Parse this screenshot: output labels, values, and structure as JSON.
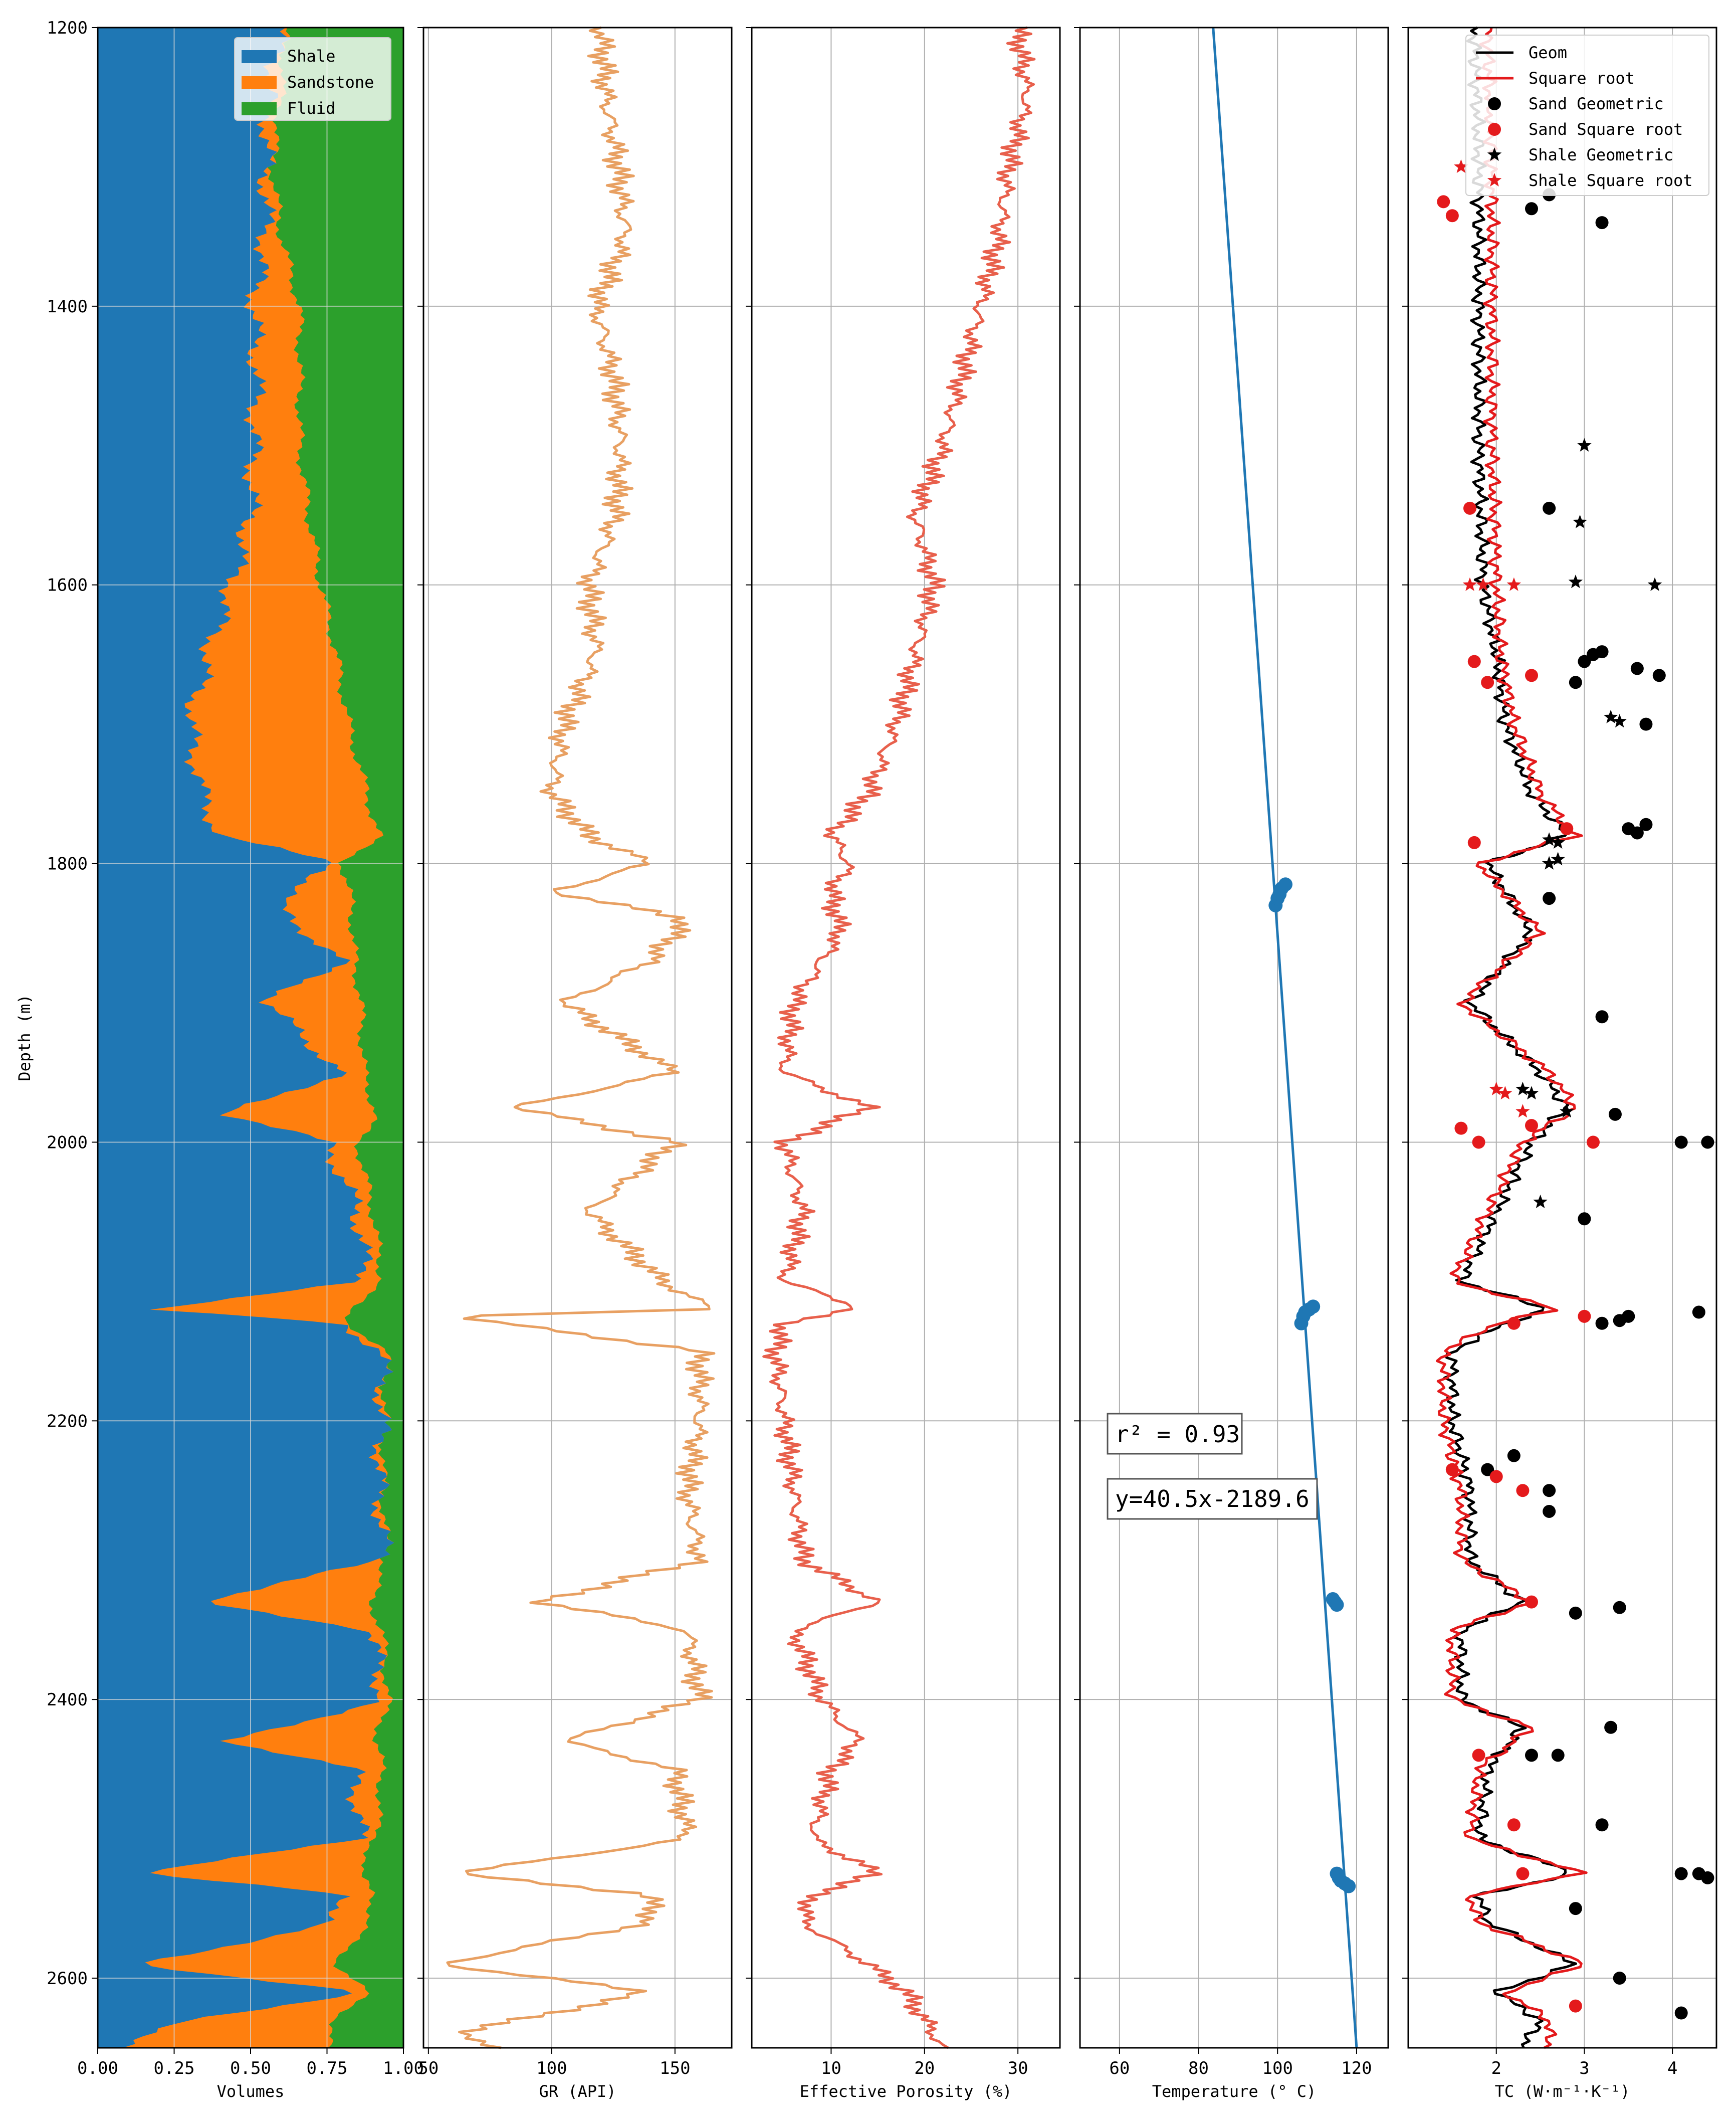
{
  "chart_data": [
    {
      "type": "area",
      "id": "volumes",
      "xlabel": "Volumes",
      "ylabel": "Depth (m)",
      "xlim": [
        0,
        1
      ],
      "ylim": [
        2650,
        1200
      ],
      "xticks": [
        0,
        0.25,
        0.5,
        0.75,
        1.0
      ],
      "xtick_labels": [
        "0.00",
        "0.25",
        "0.50",
        "0.75",
        "1.00"
      ],
      "yticks": [
        1200,
        1400,
        1600,
        1800,
        2000,
        2200,
        2400,
        2600
      ],
      "ytick_labels": [
        "1200",
        "1400",
        "1600",
        "1800",
        "2000",
        "2200",
        "2400",
        "2600"
      ],
      "grid": true,
      "legend_position": "top-right",
      "series": [
        {
          "name": "Shale",
          "color": "#1f77b4"
        },
        {
          "name": "Sandstone",
          "color": "#ff7f0e"
        },
        {
          "name": "Fluid",
          "color": "#2ca02c"
        }
      ],
      "depth": [
        1200,
        1250,
        1300,
        1350,
        1400,
        1450,
        1500,
        1550,
        1600,
        1650,
        1700,
        1750,
        1780,
        1800,
        1830,
        1870,
        1900,
        1950,
        1980,
        2000,
        2050,
        2100,
        2120,
        2130,
        2150,
        2200,
        2250,
        2300,
        2330,
        2350,
        2400,
        2430,
        2450,
        2500,
        2525,
        2540,
        2560,
        2590,
        2610,
        2630,
        2650
      ],
      "shale_top": [
        0.6,
        0.56,
        0.55,
        0.55,
        0.51,
        0.52,
        0.51,
        0.5,
        0.44,
        0.36,
        0.3,
        0.34,
        0.4,
        0.78,
        0.58,
        0.8,
        0.55,
        0.8,
        0.42,
        0.75,
        0.85,
        0.88,
        0.15,
        0.8,
        0.93,
        0.93,
        0.92,
        0.94,
        0.32,
        0.9,
        0.93,
        0.43,
        0.84,
        0.86,
        0.14,
        0.8,
        0.78,
        0.13,
        0.86,
        0.3,
        0.08
      ],
      "sand_top": [
        0.61,
        0.6,
        0.57,
        0.6,
        0.66,
        0.66,
        0.66,
        0.69,
        0.73,
        0.78,
        0.82,
        0.88,
        0.92,
        0.8,
        0.83,
        0.84,
        0.86,
        0.87,
        0.91,
        0.85,
        0.9,
        0.93,
        0.82,
        0.82,
        0.94,
        0.93,
        0.93,
        0.94,
        0.89,
        0.93,
        0.95,
        0.91,
        0.93,
        0.91,
        0.85,
        0.91,
        0.88,
        0.78,
        0.88,
        0.78,
        0.75
      ]
    },
    {
      "type": "line",
      "id": "gr",
      "xlabel": "GR (API)",
      "xlim": [
        48,
        173
      ],
      "ylim": [
        2650,
        1200
      ],
      "xticks": [
        50,
        100,
        150
      ],
      "xtick_labels": [
        "50",
        "100",
        "150"
      ],
      "grid": true,
      "color": "#e8a062",
      "depth": [
        1200,
        1250,
        1300,
        1350,
        1400,
        1450,
        1500,
        1550,
        1600,
        1650,
        1700,
        1750,
        1780,
        1800,
        1820,
        1840,
        1870,
        1900,
        1950,
        1975,
        2000,
        2050,
        2100,
        2120,
        2125,
        2150,
        2200,
        2250,
        2300,
        2330,
        2350,
        2400,
        2430,
        2450,
        2500,
        2525,
        2540,
        2560,
        2590,
        2610,
        2640,
        2650
      ],
      "values": [
        120,
        122,
        127,
        130,
        118,
        125,
        128,
        126,
        115,
        118,
        105,
        100,
        115,
        140,
        100,
        155,
        140,
        105,
        150,
        85,
        150,
        115,
        145,
        165,
        60,
        160,
        160,
        155,
        160,
        95,
        155,
        160,
        105,
        150,
        155,
        60,
        140,
        140,
        55,
        140,
        60,
        80
      ]
    },
    {
      "type": "line",
      "id": "porosity",
      "xlabel": "Effective Porosity (%)",
      "xlim": [
        1.5,
        34.5
      ],
      "ylim": [
        2650,
        1200
      ],
      "xticks": [
        10,
        20,
        30
      ],
      "xtick_labels": [
        "10",
        "20",
        "30"
      ],
      "grid": true,
      "color": "#e8604c",
      "depth": [
        1200,
        1250,
        1300,
        1350,
        1400,
        1450,
        1500,
        1550,
        1600,
        1650,
        1700,
        1750,
        1780,
        1800,
        1820,
        1850,
        1900,
        1950,
        1975,
        2000,
        2050,
        2100,
        2118,
        2130,
        2150,
        2200,
        2250,
        2300,
        2330,
        2350,
        2400,
        2430,
        2450,
        2500,
        2525,
        2540,
        2560,
        2590,
        2610,
        2630,
        2650
      ],
      "values": [
        30,
        31,
        29,
        28,
        26,
        24,
        22,
        19,
        21,
        19,
        17,
        14,
        10,
        12,
        10,
        11,
        6,
        5,
        14,
        5,
        7,
        5,
        13,
        5,
        4,
        5,
        6,
        7,
        15,
        6,
        9,
        13,
        10,
        8,
        15,
        8,
        7,
        14,
        18,
        20,
        22
      ]
    },
    {
      "type": "scatter",
      "id": "temperature",
      "xlabel": "Temperature (° C)",
      "xlim": [
        50,
        128
      ],
      "ylim": [
        2650,
        1200
      ],
      "xticks": [
        60,
        80,
        100,
        120
      ],
      "xtick_labels": [
        "60",
        "80",
        "100",
        "120"
      ],
      "grid": true,
      "color": "#1f77b4",
      "fit_line": {
        "x": [
          82,
          120
        ],
        "y": [
          1132,
          2650
        ]
      },
      "points_x": [
        99.5,
        100,
        100.5,
        101,
        102,
        106,
        106.5,
        107,
        108,
        109,
        114,
        114.5,
        115,
        115,
        115.5,
        116,
        117,
        118
      ],
      "points_y": [
        1830,
        1825,
        1822,
        1818,
        1815,
        2130,
        2125,
        2122,
        2120,
        2118,
        2328,
        2330,
        2332,
        2525,
        2528,
        2530,
        2532,
        2534
      ],
      "annotation_r2": "r² = 0.93",
      "annotation_eq": "y=40.5x-2189.6"
    },
    {
      "type": "line",
      "id": "tc",
      "xlabel": "TC (W·m⁻¹·K⁻¹)",
      "xlim": [
        1.0,
        4.5
      ],
      "ylim": [
        2650,
        1200
      ],
      "xticks": [
        2,
        3,
        4
      ],
      "xtick_labels": [
        "2",
        "3",
        "4"
      ],
      "grid": true,
      "legend_position": "top-right",
      "series": [
        {
          "name": "Geom",
          "color": "#000000",
          "kind": "line"
        },
        {
          "name": "Square root",
          "color": "#e41a1c",
          "kind": "line"
        },
        {
          "name": "Sand Geometric",
          "color": "#000000",
          "kind": "dot"
        },
        {
          "name": "Sand Square root",
          "color": "#e41a1c",
          "kind": "dot"
        },
        {
          "name": "Shale Geometric",
          "color": "#000000",
          "kind": "star"
        },
        {
          "name": "Shale Square root",
          "color": "#e41a1c",
          "kind": "star"
        }
      ],
      "depth": [
        1200,
        1300,
        1400,
        1500,
        1600,
        1650,
        1700,
        1750,
        1780,
        1800,
        1850,
        1900,
        1950,
        1975,
        2000,
        2050,
        2100,
        2120,
        2130,
        2150,
        2200,
        2250,
        2300,
        2330,
        2350,
        2400,
        2420,
        2450,
        2500,
        2525,
        2540,
        2560,
        2590,
        2610,
        2630,
        2650
      ],
      "geom": [
        1.75,
        1.8,
        1.8,
        1.8,
        1.85,
        2.0,
        2.1,
        2.4,
        2.8,
        1.9,
        2.4,
        1.7,
        2.5,
        2.8,
        2.4,
        2.0,
        1.6,
        2.6,
        2.1,
        1.5,
        1.5,
        1.7,
        1.7,
        2.3,
        1.6,
        1.6,
        2.3,
        1.9,
        1.8,
        2.9,
        1.8,
        1.9,
        2.9,
        2.0,
        2.5,
        2.3
      ],
      "sqrt": [
        1.9,
        1.95,
        1.95,
        1.95,
        2.0,
        2.05,
        2.2,
        2.5,
        2.9,
        1.8,
        2.5,
        1.6,
        2.6,
        2.9,
        2.3,
        1.9,
        1.5,
        2.7,
        2.0,
        1.4,
        1.4,
        1.6,
        1.6,
        2.4,
        1.5,
        1.5,
        2.4,
        1.8,
        1.7,
        3.0,
        1.7,
        1.8,
        3.0,
        2.1,
        2.6,
        2.6
      ],
      "sand_geom_x": [
        2.4,
        2.6,
        3.2,
        2.6,
        2.9,
        3.0,
        3.1,
        3.2,
        3.6,
        3.7,
        3.85,
        3.5,
        3.6,
        3.7,
        2.6,
        3.2,
        3.35,
        4.1,
        4.4,
        3.0,
        3.2,
        3.4,
        3.5,
        4.3,
        1.9,
        2.2,
        2.6,
        2.6,
        2.9,
        3.4,
        3.3,
        2.4,
        2.7,
        3.2,
        4.1,
        4.3,
        4.4,
        2.9,
        3.4,
        4.1
      ],
      "sand_geom_y": [
        1330,
        1320,
        1340,
        1545,
        1670,
        1655,
        1650,
        1648,
        1660,
        1700,
        1665,
        1775,
        1778,
        1772,
        1825,
        1910,
        1980,
        2000,
        2000,
        2055,
        2130,
        2128,
        2125,
        2122,
        2235,
        2225,
        2250,
        2265,
        2338,
        2334,
        2420,
        2440,
        2440,
        2490,
        2525,
        2525,
        2528,
        2550,
        2600,
        2625
      ],
      "sand_sqrt_x": [
        1.4,
        1.5,
        1.7,
        1.75,
        1.9,
        2.4,
        1.75,
        2.8,
        1.6,
        2.4,
        1.8,
        3.1,
        2.2,
        3.0,
        1.5,
        2.0,
        2.3,
        2.4,
        1.8,
        2.2,
        2.3,
        2.9
      ],
      "sand_sqrt_y": [
        1325,
        1335,
        1545,
        1655,
        1670,
        1665,
        1785,
        1775,
        1990,
        1988,
        2000,
        2000,
        2130,
        2125,
        2235,
        2240,
        2250,
        2330,
        2440,
        2490,
        2525,
        2620
      ],
      "shale_geom_x": [
        3.0,
        2.95,
        2.9,
        3.8,
        3.3,
        3.4,
        2.6,
        2.7,
        2.6,
        2.7,
        2.3,
        2.4,
        2.8,
        2.5
      ],
      "shale_geom_y": [
        1500,
        1555,
        1598,
        1600,
        1695,
        1698,
        1783,
        1785,
        1800,
        1797,
        1962,
        1965,
        1978,
        2043
      ],
      "shale_sqrt_x": [
        1.6,
        1.7,
        1.85,
        2.2,
        2.0,
        2.1,
        2.3
      ],
      "shale_sqrt_y": [
        1300,
        1600,
        1600,
        1600,
        1962,
        1965,
        1978
      ]
    }
  ]
}
